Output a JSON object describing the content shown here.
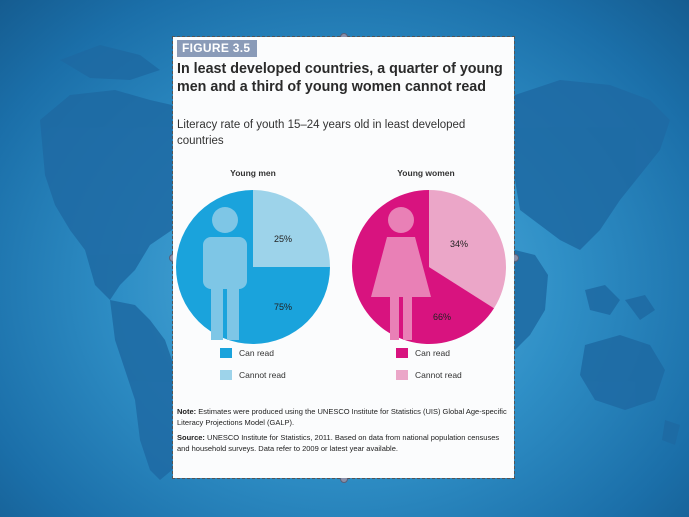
{
  "figure": {
    "tag": "FIGURE 3.5",
    "title": "In least developed countries, a quarter of young men and a third of young women cannot read",
    "subtitle": "Literacy rate of youth 15–24 years old in least developed countries"
  },
  "chart_data": [
    {
      "type": "pie",
      "title": "Young men",
      "slices": [
        {
          "label": "Can read",
          "value": 75,
          "display": "75%",
          "color": "#1aa3dc"
        },
        {
          "label": "Cannot read",
          "value": 25,
          "display": "25%",
          "color": "#9dd3ea"
        }
      ]
    },
    {
      "type": "pie",
      "title": "Young women",
      "slices": [
        {
          "label": "Can read",
          "value": 66,
          "display": "66%",
          "color": "#d8137f"
        },
        {
          "label": "Cannot read",
          "value": 34,
          "display": "34%",
          "color": "#eba6c8"
        }
      ]
    }
  ],
  "legend": {
    "men": [
      {
        "label": "Can read",
        "color": "#1aa3dc"
      },
      {
        "label": "Cannot read",
        "color": "#9dd3ea"
      }
    ],
    "women": [
      {
        "label": "Can read",
        "color": "#d8137f"
      },
      {
        "label": "Cannot read",
        "color": "#eba6c8"
      }
    ]
  },
  "notes": {
    "note_label": "Note:",
    "note_text": "Estimates were produced using the UNESCO Institute for Statistics (UIS) Global Age-specific Literacy Projections Model (GALP).",
    "source_label": "Source:",
    "source_text": "UNESCO Institute for Statistics, 2011. Based on data from national population censuses and household surveys. Data refer to 2009 or latest year available."
  },
  "icons": {
    "men_figure": "male-figure-icon",
    "women_figure": "female-figure-icon",
    "background": "world-map"
  }
}
